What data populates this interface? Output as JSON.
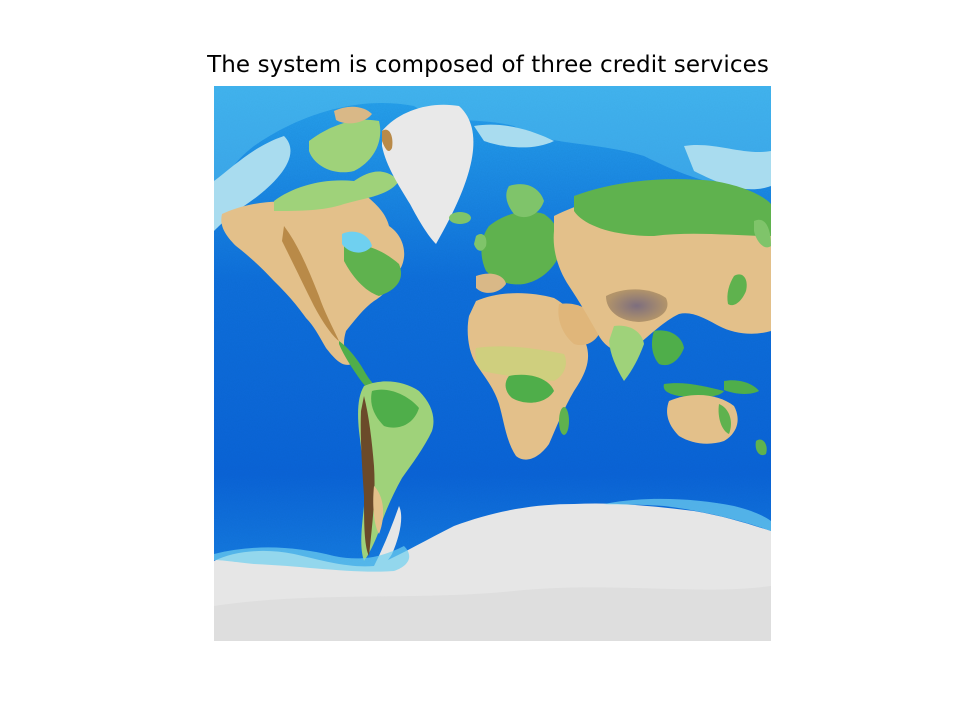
{
  "figure": {
    "title": "The system is composed of three credit services"
  },
  "map": {
    "projection": "mercator",
    "style": "shaded relief (topography + bathymetry)",
    "colors": {
      "deep_ocean": "#0a5fd6",
      "mid_ocean": "#1a8be6",
      "shelf": "#6fd0f0",
      "sea_ice": "#a9dcef",
      "lowland": "#4fae4a",
      "plain": "#9fd27a",
      "upland": "#e3c08a",
      "highland": "#b98a48",
      "peak": "#8a7a86",
      "ice": "#e6e6e6"
    }
  }
}
